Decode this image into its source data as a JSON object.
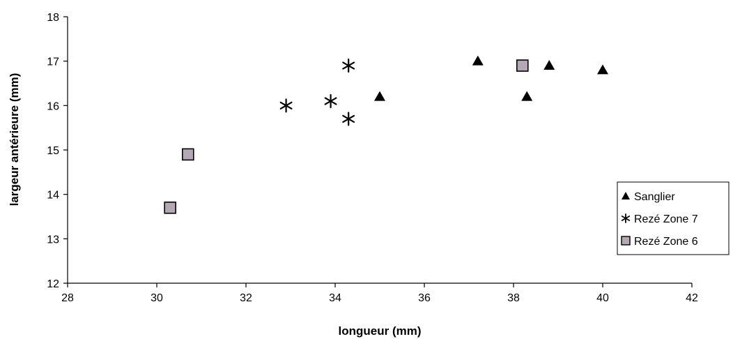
{
  "chart_data": {
    "type": "scatter",
    "title": "",
    "xlabel": "longueur (mm)",
    "ylabel": "largeur antérieure (mm)",
    "xlim": [
      28,
      42
    ],
    "ylim": [
      12,
      18
    ],
    "xticks": [
      28,
      30,
      32,
      34,
      36,
      38,
      40,
      42
    ],
    "yticks": [
      12,
      13,
      14,
      15,
      16,
      17,
      18
    ],
    "grid": false,
    "legend_position": "right",
    "series": [
      {
        "name": "Sanglier",
        "marker": "triangle",
        "color": "#000000",
        "points": [
          [
            35.0,
            16.2
          ],
          [
            37.2,
            17.0
          ],
          [
            38.3,
            16.2
          ],
          [
            38.8,
            16.9
          ],
          [
            40.0,
            16.8
          ]
        ]
      },
      {
        "name": "Rezé Zone 7",
        "marker": "asterisk",
        "color": "#000000",
        "points": [
          [
            32.9,
            16.0
          ],
          [
            33.9,
            16.1
          ],
          [
            34.3,
            16.9
          ],
          [
            34.3,
            15.7
          ]
        ]
      },
      {
        "name": "Rezé Zone 6",
        "marker": "square",
        "color": "#b3a8b3",
        "points": [
          [
            30.3,
            13.7
          ],
          [
            30.7,
            14.9
          ],
          [
            38.2,
            16.9
          ]
        ]
      }
    ]
  }
}
